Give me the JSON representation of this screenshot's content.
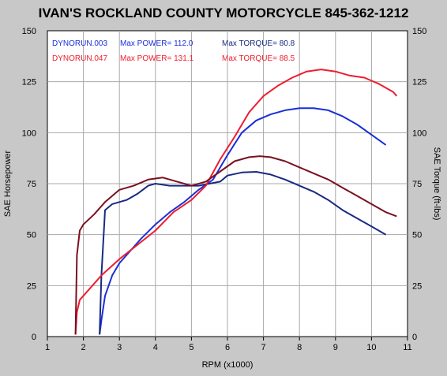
{
  "colors": {
    "background": "#c8c8c8",
    "plot_background": "#ffffff",
    "grid": "#a8a8a8",
    "axis_text": "#000000",
    "run003_power": "#1a2fd8",
    "run003_torque": "#1a2a80",
    "run047_power": "#ee1c2e",
    "run047_torque": "#7a1020"
  },
  "chart_data": {
    "type": "line",
    "title": "IVAN'S ROCKLAND COUNTY MOTORCYCLE 845-362-1212",
    "xlabel": "RPM (x1000)",
    "ylabel_left": "SAE Horsepower",
    "ylabel_right": "SAE Torque (ft-lbs)",
    "xlim": [
      1,
      11
    ],
    "ylim": [
      0,
      150
    ],
    "x_ticks": [
      1,
      2,
      3,
      4,
      5,
      6,
      7,
      8,
      9,
      10,
      11
    ],
    "y_ticks": [
      0,
      25,
      50,
      75,
      100,
      125,
      150
    ],
    "grid": true,
    "legend": [
      {
        "run": "DYNORUN.003",
        "power_label": "Max POWER= 112.0",
        "torque_label": "Max TORQUE= 80.8",
        "color": "#1a2fd8"
      },
      {
        "run": "DYNORUN.047",
        "power_label": "Max POWER= 131.1",
        "torque_label": "Max TORQUE= 88.5",
        "color": "#ee1c2e"
      }
    ],
    "series": [
      {
        "run": "DYNORUN.003",
        "measure": "power",
        "color": "#1a2fd8",
        "x": [
          2.45,
          2.5,
          2.6,
          2.8,
          3.0,
          3.3,
          3.6,
          4.0,
          4.4,
          4.8,
          5.2,
          5.6,
          6.0,
          6.4,
          6.8,
          7.2,
          7.6,
          8.0,
          8.4,
          8.8,
          9.2,
          9.6,
          10.0,
          10.4
        ],
        "y": [
          1,
          8,
          20,
          30,
          36,
          42,
          48,
          55,
          61,
          66,
          72,
          77,
          89,
          100,
          106,
          109,
          111,
          112,
          112,
          111,
          108,
          104,
          99,
          94
        ]
      },
      {
        "run": "DYNORUN.003",
        "measure": "torque",
        "color": "#1a2a80",
        "x": [
          2.45,
          2.5,
          2.6,
          2.8,
          3.0,
          3.2,
          3.5,
          3.8,
          4.0,
          4.4,
          4.8,
          5.2,
          5.5,
          5.8,
          6.0,
          6.4,
          6.8,
          7.2,
          7.6,
          8.0,
          8.4,
          8.8,
          9.2,
          9.6,
          10.0,
          10.4
        ],
        "y": [
          1,
          30,
          62,
          65,
          66,
          67,
          70,
          74,
          75,
          74,
          74,
          74,
          75,
          76,
          79,
          80.5,
          80.8,
          79.5,
          77,
          74,
          71,
          67,
          62,
          58,
          54,
          50
        ]
      },
      {
        "run": "DYNORUN.047",
        "measure": "power",
        "color": "#ee1c2e",
        "x": [
          1.78,
          1.82,
          1.9,
          2.1,
          2.5,
          3.0,
          3.5,
          4.0,
          4.5,
          5.0,
          5.4,
          5.8,
          6.2,
          6.6,
          7.0,
          7.4,
          7.8,
          8.2,
          8.6,
          9.0,
          9.4,
          9.8,
          10.2,
          10.6,
          10.7
        ],
        "y": [
          1,
          12,
          18,
          22,
          30,
          38,
          45,
          52,
          61,
          67,
          74,
          87,
          98,
          110,
          118,
          123,
          127,
          130,
          131,
          130,
          128,
          127,
          124,
          120,
          118
        ]
      },
      {
        "run": "DYNORUN.047",
        "measure": "torque",
        "color": "#7a1020",
        "x": [
          1.78,
          1.82,
          1.9,
          2.0,
          2.3,
          2.6,
          3.0,
          3.4,
          3.8,
          4.2,
          4.6,
          5.0,
          5.4,
          5.8,
          6.2,
          6.6,
          6.9,
          7.2,
          7.6,
          8.0,
          8.4,
          8.8,
          9.2,
          9.6,
          10.0,
          10.4,
          10.7
        ],
        "y": [
          1,
          40,
          52,
          55,
          60,
          66,
          72,
          74,
          77,
          78,
          76,
          74,
          76,
          81,
          86,
          88,
          88.5,
          88,
          86,
          83,
          80,
          77,
          73,
          69,
          65,
          61,
          59
        ]
      }
    ]
  }
}
